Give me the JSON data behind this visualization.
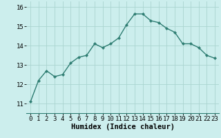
{
  "x": [
    0,
    1,
    2,
    3,
    4,
    5,
    6,
    7,
    8,
    9,
    10,
    11,
    12,
    13,
    14,
    15,
    16,
    17,
    18,
    19,
    20,
    21,
    22,
    23
  ],
  "y": [
    11.1,
    12.2,
    12.7,
    12.4,
    12.5,
    13.1,
    13.4,
    13.5,
    14.1,
    13.9,
    14.1,
    14.4,
    15.1,
    15.65,
    15.65,
    15.3,
    15.2,
    14.9,
    14.7,
    14.1,
    14.1,
    13.9,
    13.5,
    13.35
  ],
  "line_color": "#2e7d72",
  "marker": "D",
  "marker_size": 2.2,
  "bg_color": "#cceeed",
  "grid_color": "#aad4d0",
  "xlabel": "Humidex (Indice chaleur)",
  "xlim": [
    -0.5,
    23.5
  ],
  "ylim": [
    10.5,
    16.3
  ],
  "yticks": [
    11,
    12,
    13,
    14,
    15,
    16
  ],
  "xticks": [
    0,
    1,
    2,
    3,
    4,
    5,
    6,
    7,
    8,
    9,
    10,
    11,
    12,
    13,
    14,
    15,
    16,
    17,
    18,
    19,
    20,
    21,
    22,
    23
  ],
  "xlabel_fontsize": 7.5,
  "tick_fontsize": 6.5,
  "line_width": 1.0
}
